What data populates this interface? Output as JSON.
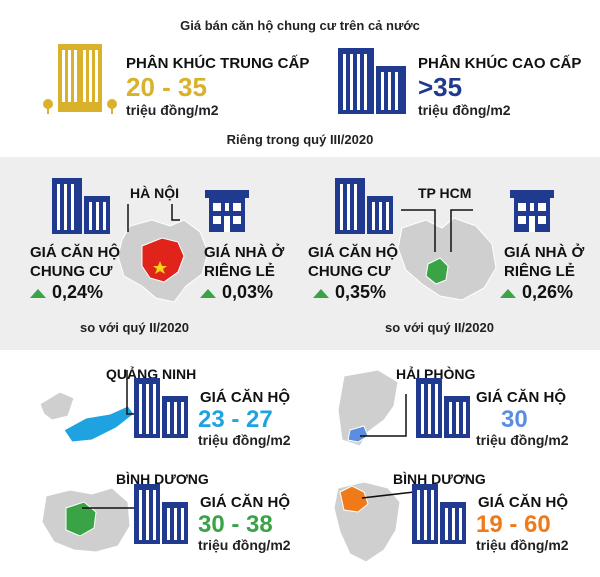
{
  "header": {
    "title": "Giá bán căn hộ chung cư trên cả nước"
  },
  "colors": {
    "gold": "#d9b12b",
    "navy": "#1f3a8f",
    "blue": "#1fa3e0",
    "green": "#3aa345",
    "orange": "#f07a1a",
    "red": "#e0231b",
    "gray_map": "#cfcfcf"
  },
  "segments": {
    "mid": {
      "label": "PHÂN KHÚC TRUNG CẤP",
      "value": "20 - 35",
      "unit": "triệu đồng/m2"
    },
    "high": {
      "label": "PHÂN KHÚC CAO CẤP",
      "value": ">35",
      "unit": "triệu đồng/m2"
    }
  },
  "quarter_title": "Riêng trong quý III/2020",
  "cities": {
    "hanoi": {
      "name": "HÀ NỘI",
      "apt_label_1": "GIÁ CĂN HỘ",
      "apt_label_2": "CHUNG CƯ",
      "apt_change": "0,24%",
      "house_label_1": "GIÁ NHÀ Ở",
      "house_label_2": "RIÊNG LẺ",
      "house_change": "0,03%",
      "note": "so với quý II/2020"
    },
    "hcm": {
      "name": "TP HCM",
      "apt_label_1": "GIÁ CĂN HỘ",
      "apt_label_2": "CHUNG CƯ",
      "apt_change": "0,35%",
      "house_label_1": "GIÁ NHÀ Ở",
      "house_label_2": "RIÊNG LẺ",
      "house_change": "0,26%",
      "note": "so với quý II/2020"
    }
  },
  "provinces": [
    {
      "name": "QUẢNG NINH",
      "label": "GIÁ CĂN HỘ",
      "price": "23 - 27",
      "unit": "triệu đồng/m2"
    },
    {
      "name": "HẢI PHÒNG",
      "label": "GIÁ CĂN HỘ",
      "price": "30",
      "unit": "triệu đồng/m2"
    },
    {
      "name": "BÌNH DƯƠNG",
      "label": "GIÁ CĂN HỘ",
      "price": "30 - 38",
      "unit": "triệu đồng/m2"
    },
    {
      "name": "BÌNH DƯƠNG",
      "label": "GIÁ CĂN HỘ",
      "price": "19 - 60",
      "unit": "triệu đồng/m2"
    }
  ]
}
